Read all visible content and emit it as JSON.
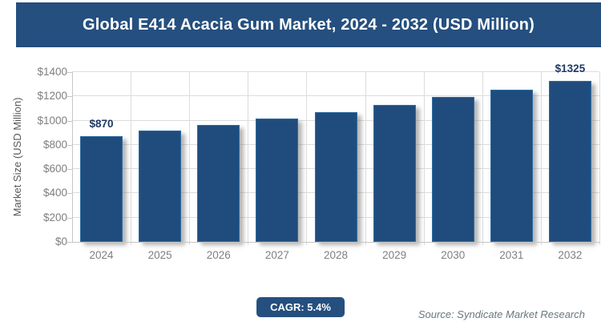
{
  "banner": {
    "title": "Global E414 Acacia Gum Market, 2024 - 2032 (USD Million)",
    "bg_color": "#254F7E",
    "text_color": "#FFFFFF"
  },
  "chart_data": {
    "type": "bar",
    "title": "Global E414 Acacia Gum Market, 2024 - 2032 (USD Million)",
    "xlabel": "",
    "ylabel": "Market Size (USD Million)",
    "ylim": [
      0,
      1400
    ],
    "ytick_step": 200,
    "yticks": [
      "$0",
      "$200",
      "$400",
      "$600",
      "$800",
      "$1000",
      "$1200",
      "$1400"
    ],
    "grid": true,
    "legend": "none",
    "categories": [
      "2024",
      "2025",
      "2026",
      "2027",
      "2028",
      "2029",
      "2030",
      "2031",
      "2032"
    ],
    "values": [
      870,
      917,
      966,
      1018,
      1073,
      1131,
      1192,
      1257,
      1325
    ],
    "data_labels": {
      "2024": "$870",
      "2032": "$1325"
    },
    "bar_color": "#1F4C7C",
    "gridline_color": "#DCDCDC",
    "tick_label_color": "#7F7F7F",
    "data_label_color": "#1F3864"
  },
  "footer": {
    "cagr_label": "CAGR: 5.4%",
    "source": "Source: Syndicate Market Research"
  }
}
